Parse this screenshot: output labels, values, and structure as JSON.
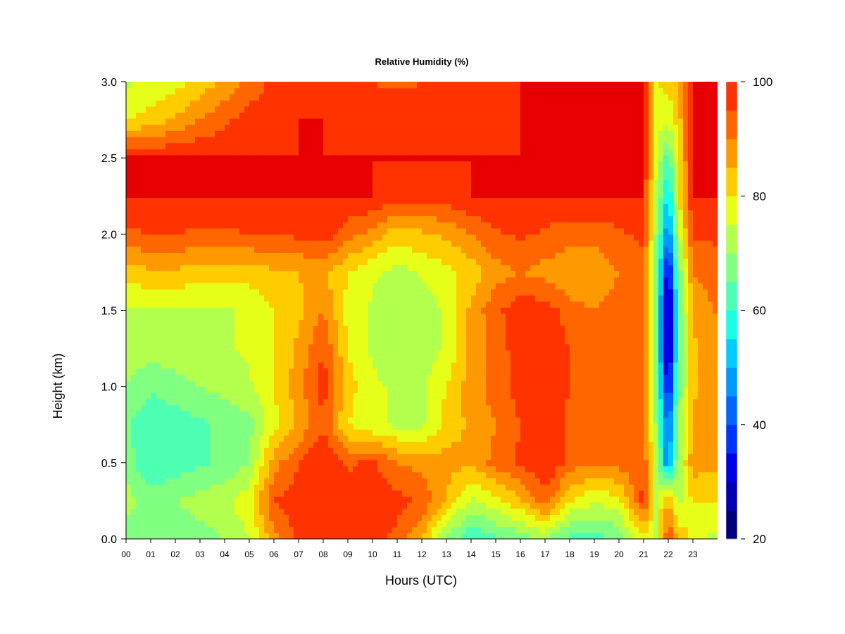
{
  "chart_data": {
    "type": "heatmap",
    "title": "Relative Humidity (%)",
    "xlabel": "Hours (UTC)",
    "ylabel": "Height (km)",
    "xlim": [
      0,
      24
    ],
    "ylim": [
      0.0,
      3.0
    ],
    "x_ticks": [
      "00",
      "01",
      "02",
      "03",
      "04",
      "05",
      "06",
      "07",
      "08",
      "09",
      "10",
      "11",
      "12",
      "13",
      "14",
      "15",
      "16",
      "17",
      "18",
      "19",
      "20",
      "21",
      "22",
      "23"
    ],
    "y_ticks": [
      "0.0",
      "0.5",
      "1.0",
      "1.5",
      "2.0",
      "2.5",
      "3.0"
    ],
    "colorbar": {
      "min": 20,
      "max": 100,
      "step": 5,
      "ticks": [
        "20",
        "40",
        "60",
        "80",
        "100"
      ],
      "colors": [
        "#00007F",
        "#0000B3",
        "#0000E6",
        "#0033FF",
        "#0066FF",
        "#0099FF",
        "#00CCFF",
        "#19FFE6",
        "#4DFFB3",
        "#80FF80",
        "#B3FF4D",
        "#E6FF19",
        "#FFCC00",
        "#FF9900",
        "#FF6600",
        "#FF3300",
        "#E60000",
        "#B30000",
        "#800000"
      ]
    },
    "x": [
      0,
      1,
      2,
      3,
      4,
      5,
      6,
      7,
      8,
      9,
      10,
      11,
      12,
      13,
      14,
      15,
      16,
      17,
      18,
      19,
      20,
      21,
      21.5,
      22,
      22.4,
      23,
      23.8
    ],
    "y": [
      0.0,
      0.25,
      0.5,
      0.75,
      1.0,
      1.25,
      1.5,
      1.75,
      2.0,
      2.25,
      2.5,
      2.75,
      3.0
    ],
    "z": [
      [
        68,
        65,
        66,
        68,
        70,
        75,
        88,
        97,
        100,
        97,
        98,
        93,
        86,
        68,
        60,
        64,
        67,
        70,
        63,
        62,
        66,
        78,
        75,
        96,
        84,
        78,
        74
      ],
      [
        72,
        68,
        70,
        72,
        74,
        78,
        95,
        98,
        100,
        98,
        100,
        97,
        94,
        84,
        74,
        78,
        84,
        93,
        80,
        76,
        78,
        97,
        74,
        86,
        74,
        80,
        80
      ],
      [
        68,
        60,
        62,
        64,
        66,
        70,
        88,
        95,
        100,
        94,
        96,
        90,
        88,
        87,
        86,
        92,
        96,
        100,
        93,
        90,
        92,
        95,
        72,
        44,
        72,
        88,
        86
      ],
      [
        66,
        60,
        62,
        64,
        66,
        68,
        78,
        86,
        94,
        80,
        76,
        74,
        74,
        82,
        86,
        90,
        95,
        100,
        93,
        90,
        90,
        92,
        70,
        42,
        70,
        86,
        88
      ],
      [
        70,
        66,
        68,
        70,
        72,
        74,
        80,
        88,
        98,
        82,
        76,
        74,
        74,
        80,
        88,
        92,
        97,
        100,
        95,
        92,
        90,
        92,
        68,
        30,
        66,
        84,
        88
      ],
      [
        73,
        72,
        73,
        74,
        74,
        76,
        80,
        86,
        95,
        80,
        74,
        72,
        72,
        76,
        86,
        92,
        98,
        100,
        95,
        92,
        92,
        94,
        66,
        22,
        64,
        84,
        88
      ],
      [
        74,
        74,
        74,
        74,
        74,
        76,
        80,
        84,
        90,
        78,
        74,
        70,
        72,
        76,
        86,
        94,
        98,
        98,
        92,
        90,
        92,
        94,
        66,
        22,
        64,
        86,
        90
      ],
      [
        82,
        84,
        84,
        82,
        82,
        82,
        84,
        85,
        86,
        80,
        76,
        73,
        76,
        78,
        82,
        88,
        90,
        88,
        86,
        86,
        90,
        94,
        68,
        28,
        66,
        90,
        92
      ],
      [
        94,
        95,
        95,
        94,
        94,
        95,
        95,
        96,
        98,
        92,
        88,
        82,
        84,
        86,
        90,
        94,
        96,
        94,
        92,
        92,
        94,
        96,
        70,
        44,
        72,
        96,
        96
      ],
      [
        100,
        100,
        100,
        100,
        100,
        100,
        100,
        100,
        100,
        100,
        100,
        97,
        97,
        98,
        100,
        100,
        100,
        100,
        100,
        100,
        100,
        100,
        74,
        52,
        78,
        100,
        100
      ],
      [
        100,
        100,
        100,
        100,
        100,
        100,
        100,
        100,
        100,
        100,
        100,
        100,
        100,
        100,
        100,
        100,
        100,
        100,
        100,
        100,
        100,
        100,
        76,
        62,
        80,
        100,
        100
      ],
      [
        80,
        82,
        86,
        90,
        94,
        97,
        98,
        100,
        100,
        99,
        98,
        98,
        97,
        97,
        98,
        99,
        100,
        100,
        100,
        100,
        100,
        100,
        78,
        76,
        82,
        100,
        100
      ],
      [
        74,
        76,
        78,
        82,
        86,
        92,
        96,
        98,
        98,
        96,
        95,
        94,
        95,
        96,
        97,
        98,
        100,
        100,
        100,
        100,
        100,
        100,
        80,
        82,
        84,
        100,
        100
      ]
    ]
  }
}
